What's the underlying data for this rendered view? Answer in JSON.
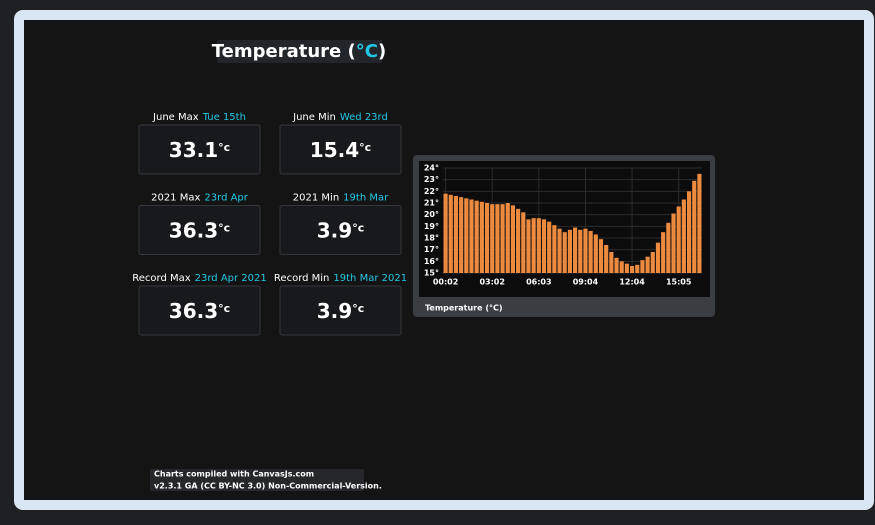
{
  "dialog": {
    "title": {
      "text": "Temperature (",
      "unit": "°C",
      "close": ")"
    },
    "stats": [
      {
        "label": "June Max",
        "date": "Tue 15th",
        "value": "33.1",
        "unit": "°c"
      },
      {
        "label": "June Min",
        "date": "Wed 23rd",
        "value": "15.4",
        "unit": "°c"
      },
      {
        "label": "2021 Max",
        "date": "23rd Apr",
        "value": "36.3",
        "unit": "°c"
      },
      {
        "label": "2021 Min",
        "date": "19th Mar",
        "value": "3.9",
        "unit": "°c"
      },
      {
        "label": "Record Max",
        "date": "23rd Apr 2021",
        "value": "36.3",
        "unit": "°c"
      },
      {
        "label": "Record Min",
        "date": "19th Mar 2021",
        "value": "3.9",
        "unit": "°c"
      }
    ],
    "footer": [
      "Charts compiled with CanvasJs.com",
      "v2.3.1 GA (CC BY-NC 3.0) Non-Commercial-Version."
    ]
  },
  "chart_data": {
    "type": "bar",
    "caption": "Temperature (°C)",
    "categories": [
      "00:02",
      null,
      null,
      null,
      null,
      null,
      null,
      null,
      null,
      "03:02",
      null,
      null,
      null,
      null,
      null,
      null,
      null,
      null,
      "06:03",
      null,
      null,
      null,
      null,
      null,
      null,
      null,
      null,
      "09:04",
      null,
      null,
      null,
      null,
      null,
      null,
      null,
      null,
      "12:04",
      null,
      null,
      null,
      null,
      null,
      null,
      null,
      null,
      "15:05",
      null,
      null,
      null,
      null
    ],
    "values": [
      21.8,
      21.7,
      21.6,
      21.5,
      21.4,
      21.3,
      21.2,
      21.1,
      21.0,
      20.9,
      20.9,
      20.9,
      21.0,
      20.8,
      20.5,
      20.2,
      19.6,
      19.7,
      19.7,
      19.6,
      19.4,
      19.1,
      18.8,
      18.5,
      18.7,
      18.9,
      18.7,
      18.8,
      18.6,
      18.3,
      17.9,
      17.4,
      16.8,
      16.3,
      16.0,
      15.8,
      15.6,
      15.7,
      16.1,
      16.4,
      16.8,
      17.6,
      18.5,
      19.3,
      20.1,
      20.7,
      21.3,
      22.0,
      22.9,
      23.5
    ],
    "color": "#ec8a40",
    "ylim": [
      15,
      24
    ],
    "yticks": [
      {
        "value": 15,
        "label": "15°"
      },
      {
        "value": 16,
        "label": "16°"
      },
      {
        "value": 17,
        "label": "17°"
      },
      {
        "value": 18,
        "label": "18°"
      },
      {
        "value": 19,
        "label": "19°"
      },
      {
        "value": 20,
        "label": "20°"
      },
      {
        "value": 21,
        "label": "21°"
      },
      {
        "value": 22,
        "label": "22°"
      },
      {
        "value": 23,
        "label": "23°"
      },
      {
        "value": 24,
        "label": "24°"
      }
    ],
    "grid": true
  }
}
